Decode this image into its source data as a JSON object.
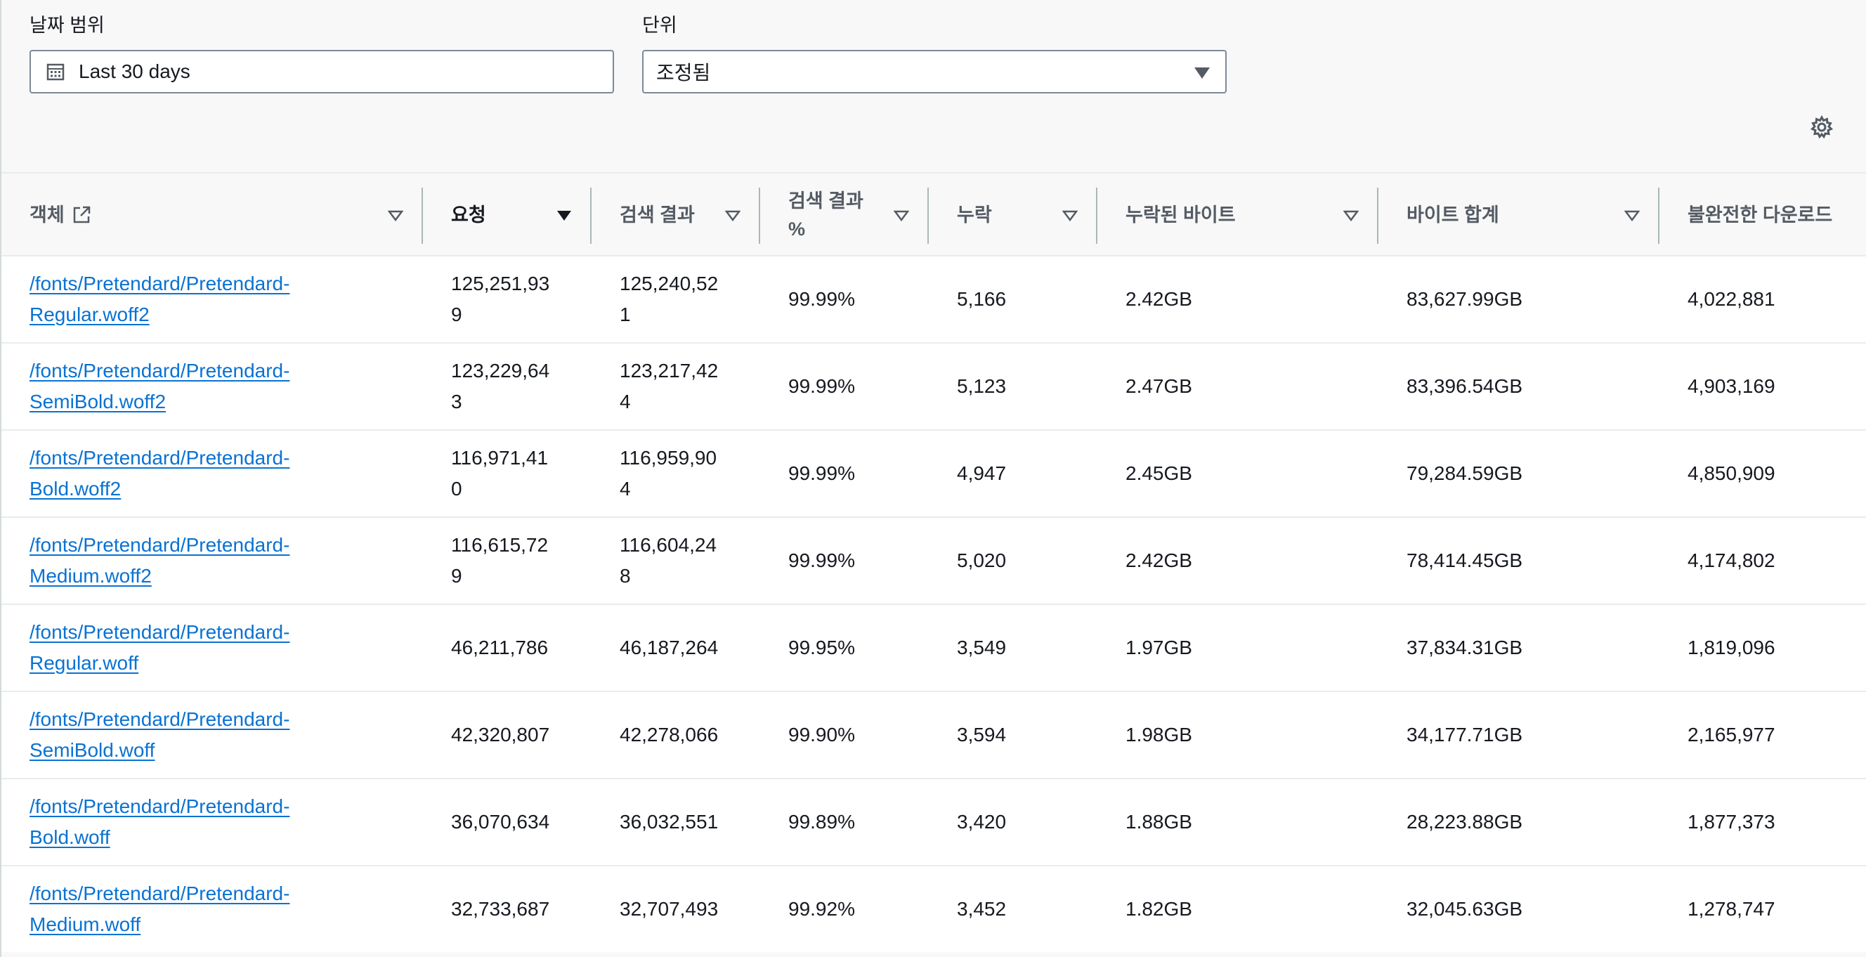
{
  "filters": {
    "date_range": {
      "label": "날짜 범위",
      "value": "Last 30 days"
    },
    "unit": {
      "label": "단위",
      "value": "조정됨"
    }
  },
  "icons": {
    "calendar": "calendar-icon",
    "settings": "gear-icon",
    "external": "external-link-icon"
  },
  "table": {
    "columns": [
      {
        "label": "객체",
        "sort": "none"
      },
      {
        "label": "요청",
        "sort": "descending"
      },
      {
        "label": "검색 결과",
        "sort": "none"
      },
      {
        "label": "검색 결과 %",
        "sort": "none"
      },
      {
        "label": "누락",
        "sort": "none"
      },
      {
        "label": "누락된 바이트",
        "sort": "none"
      },
      {
        "label": "바이트 합계",
        "sort": "none"
      },
      {
        "label": "불완전한 다운로드",
        "sort": "none"
      }
    ],
    "rows": [
      {
        "object": "/fonts/Pretendard/Pretendard-Regular.woff2",
        "requests": "125,251,939",
        "hits": "125,240,521",
        "hit_pct": "99.99%",
        "misses": "5,166",
        "miss_bytes": "2.42GB",
        "total_bytes": "83,627.99GB",
        "incomplete": "4,022,881"
      },
      {
        "object": "/fonts/Pretendard/Pretendard-SemiBold.woff2",
        "requests": "123,229,643",
        "hits": "123,217,424",
        "hit_pct": "99.99%",
        "misses": "5,123",
        "miss_bytes": "2.47GB",
        "total_bytes": "83,396.54GB",
        "incomplete": "4,903,169"
      },
      {
        "object": "/fonts/Pretendard/Pretendard-Bold.woff2",
        "requests": "116,971,410",
        "hits": "116,959,904",
        "hit_pct": "99.99%",
        "misses": "4,947",
        "miss_bytes": "2.45GB",
        "total_bytes": "79,284.59GB",
        "incomplete": "4,850,909"
      },
      {
        "object": "/fonts/Pretendard/Pretendard-Medium.woff2",
        "requests": "116,615,729",
        "hits": "116,604,248",
        "hit_pct": "99.99%",
        "misses": "5,020",
        "miss_bytes": "2.42GB",
        "total_bytes": "78,414.45GB",
        "incomplete": "4,174,802"
      },
      {
        "object": "/fonts/Pretendard/Pretendard-Regular.woff",
        "requests": "46,211,786",
        "hits": "46,187,264",
        "hit_pct": "99.95%",
        "misses": "3,549",
        "miss_bytes": "1.97GB",
        "total_bytes": "37,834.31GB",
        "incomplete": "1,819,096"
      },
      {
        "object": "/fonts/Pretendard/Pretendard-SemiBold.woff",
        "requests": "42,320,807",
        "hits": "42,278,066",
        "hit_pct": "99.90%",
        "misses": "3,594",
        "miss_bytes": "1.98GB",
        "total_bytes": "34,177.71GB",
        "incomplete": "2,165,977"
      },
      {
        "object": "/fonts/Pretendard/Pretendard-Bold.woff",
        "requests": "36,070,634",
        "hits": "36,032,551",
        "hit_pct": "99.89%",
        "misses": "3,420",
        "miss_bytes": "1.88GB",
        "total_bytes": "28,223.88GB",
        "incomplete": "1,877,373"
      },
      {
        "object": "/fonts/Pretendard/Pretendard-Medium.woff",
        "requests": "32,733,687",
        "hits": "32,707,493",
        "hit_pct": "99.92%",
        "misses": "3,452",
        "miss_bytes": "1.82GB",
        "total_bytes": "32,045.63GB",
        "incomplete": "1,278,747"
      }
    ]
  }
}
